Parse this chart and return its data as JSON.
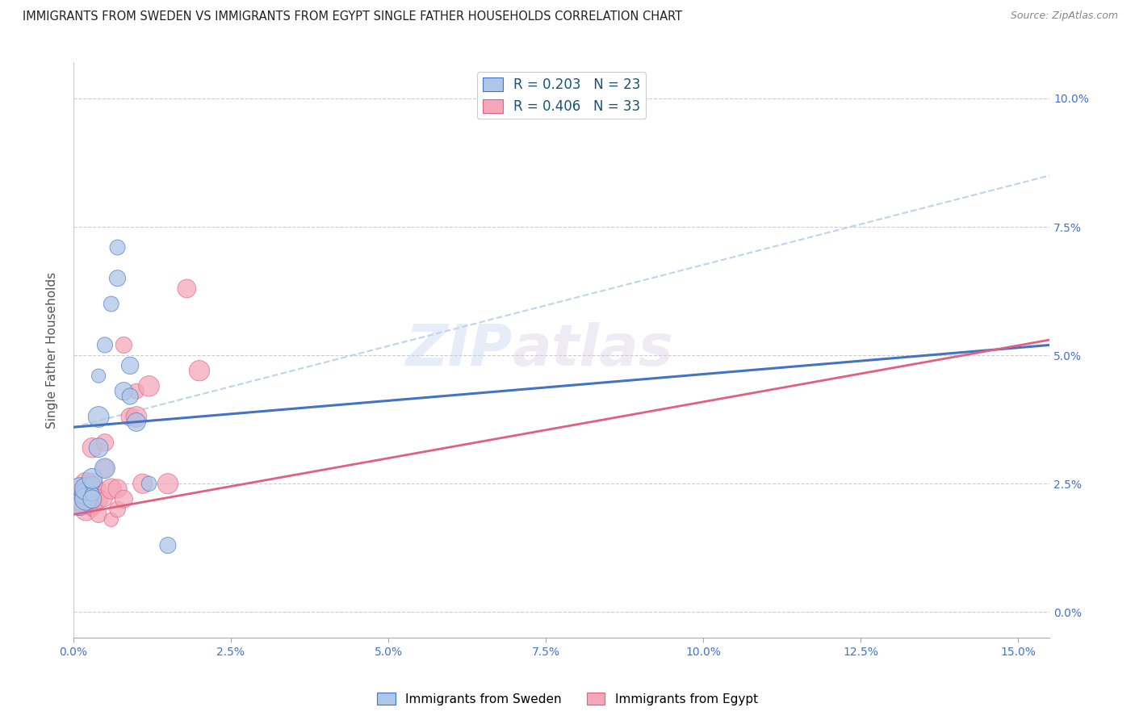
{
  "title": "IMMIGRANTS FROM SWEDEN VS IMMIGRANTS FROM EGYPT SINGLE FATHER HOUSEHOLDS CORRELATION CHART",
  "source": "Source: ZipAtlas.com",
  "ylabel": "Single Father Households",
  "ytick_vals": [
    0.0,
    0.025,
    0.05,
    0.075,
    0.1
  ],
  "ytick_labels": [
    "0.0%",
    "2.5%",
    "5.0%",
    "7.5%",
    "10.0%"
  ],
  "xtick_vals": [
    0.0,
    0.025,
    0.05,
    0.075,
    0.1,
    0.125,
    0.15
  ],
  "xtick_labels": [
    "0.0%",
    "2.5%",
    "5.0%",
    "7.5%",
    "10.0%",
    "12.5%",
    "15.0%"
  ],
  "color_sweden": "#aec6e8",
  "color_egypt": "#f4a7b9",
  "color_line_sweden": "#4472c4",
  "color_line_egypt": "#e06080",
  "color_line_dashed": "#b0c8e8",
  "watermark_text": "ZIP",
  "watermark_text2": "atlas",
  "sweden_x": [
    0.001,
    0.001,
    0.002,
    0.002,
    0.002,
    0.003,
    0.003,
    0.003,
    0.003,
    0.004,
    0.004,
    0.004,
    0.005,
    0.005,
    0.006,
    0.007,
    0.007,
    0.008,
    0.009,
    0.009,
    0.01,
    0.012,
    0.015
  ],
  "sweden_y": [
    0.024,
    0.021,
    0.023,
    0.022,
    0.024,
    0.025,
    0.023,
    0.026,
    0.022,
    0.032,
    0.046,
    0.038,
    0.028,
    0.052,
    0.06,
    0.071,
    0.065,
    0.043,
    0.048,
    0.042,
    0.037,
    0.025,
    0.013
  ],
  "egypt_x": [
    0.001,
    0.001,
    0.001,
    0.001,
    0.002,
    0.002,
    0.002,
    0.002,
    0.003,
    0.003,
    0.003,
    0.003,
    0.003,
    0.004,
    0.004,
    0.004,
    0.005,
    0.005,
    0.005,
    0.006,
    0.006,
    0.007,
    0.007,
    0.008,
    0.008,
    0.009,
    0.01,
    0.01,
    0.011,
    0.012,
    0.015,
    0.018,
    0.02
  ],
  "egypt_y": [
    0.023,
    0.022,
    0.021,
    0.022,
    0.025,
    0.022,
    0.02,
    0.023,
    0.023,
    0.02,
    0.021,
    0.025,
    0.032,
    0.019,
    0.024,
    0.022,
    0.033,
    0.022,
    0.028,
    0.018,
    0.024,
    0.02,
    0.024,
    0.052,
    0.022,
    0.038,
    0.043,
    0.038,
    0.025,
    0.044,
    0.025,
    0.063,
    0.047
  ],
  "xlim": [
    0.0,
    0.155
  ],
  "ylim": [
    -0.005,
    0.107
  ],
  "sweden_line_x": [
    0.0,
    0.155
  ],
  "sweden_line_y": [
    0.036,
    0.052
  ],
  "egypt_line_x": [
    0.0,
    0.155
  ],
  "egypt_line_y": [
    0.019,
    0.053
  ],
  "dashed_line_x": [
    0.0,
    0.155
  ],
  "dashed_line_y": [
    0.036,
    0.085
  ]
}
